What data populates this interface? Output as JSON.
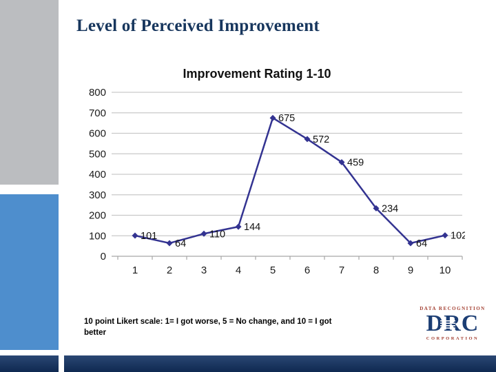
{
  "slide": {
    "title": "Level of Perceived Improvement",
    "caption": "10 point Likert scale:  1= I got worse, 5 = No change, and 10 = I got better"
  },
  "logo": {
    "top": "DATA RECOGNITION",
    "main": "DRC",
    "bottom": "CORPORATION"
  },
  "colors": {
    "title_text": "#17365d",
    "sidebar_gray": "#bbbdc0",
    "sidebar_blue": "#4e8ecd",
    "footer_navy": "#123263",
    "line": "#333391",
    "gridline": "#c9c9c9",
    "axis": "#a6a6a6",
    "chart_text": "#1a1a1a",
    "logo_red": "#a33f31",
    "logo_navy": "#1c3e74"
  },
  "chart_data": {
    "type": "line",
    "title": "Improvement Rating 1-10",
    "categories": [
      "1",
      "2",
      "3",
      "4",
      "5",
      "6",
      "7",
      "8",
      "9",
      "10"
    ],
    "values": [
      101,
      64,
      110,
      144,
      675,
      572,
      459,
      234,
      64,
      102
    ],
    "xlabel": "",
    "ylabel": "",
    "ylim": [
      0,
      800
    ],
    "ytick_step": 100,
    "yticks": [
      0,
      100,
      200,
      300,
      400,
      500,
      600,
      700,
      800
    ],
    "grid": true,
    "legend": "none",
    "marker": "diamond",
    "data_labels": true
  }
}
